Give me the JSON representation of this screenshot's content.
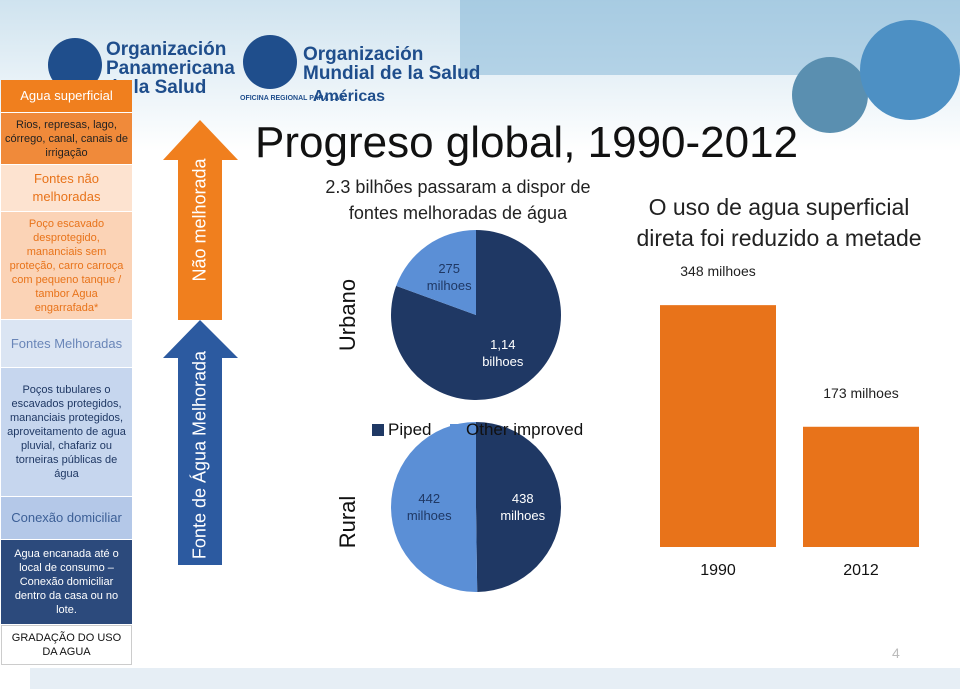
{
  "header": {
    "paho": [
      "Organización",
      "Panamericana",
      "de la Salud"
    ],
    "who": [
      "Organización",
      "Mundial de la Salud"
    ],
    "who_office": "OFICINA REGIONAL PARA LAS",
    "who_region": "Américas"
  },
  "sidebar": [
    "Agua superficial",
    "Rios, represas, lago, córrego, canal, canais de irrigação",
    "Fontes não melhoradas",
    "Poço escavado desprotegido, mananciais sem proteção, carro carroça com pequeno tanque / tambor Agua engarrafada*",
    "Fontes Melhoradas",
    "Poços tubulares o escavados protegidos, mananciais protegidos, aproveitamento de agua pluvial, chafariz ou torneiras públicas de água",
    "Conexão domiciliar",
    "Agua encanada até o local de consumo – Conexão domiciliar dentro da casa ou no lote.",
    "GRADAÇÃO DO USO DA AGUA"
  ],
  "arrows": [
    "Não melhorada",
    "Fonte de Água Melhorada"
  ],
  "title": "Progreso global, 1990-2012",
  "page_number": "4",
  "chart_data": [
    {
      "type": "pie",
      "title": "2.3 bilhões passaram a dispor de fontes melhoradas de água",
      "categories": [
        "Piped",
        "Other improved"
      ],
      "colors": [
        "#1f3864",
        "#5b8fd6"
      ],
      "series": [
        {
          "name": "Urbano",
          "values": [
            1140,
            275
          ],
          "value_labels": [
            "1,14 bilhoes",
            "275 milhoes"
          ]
        },
        {
          "name": "Rural",
          "values": [
            438,
            442
          ],
          "value_labels": [
            "438 milhoes",
            "442 milhoes"
          ]
        }
      ]
    },
    {
      "type": "bar",
      "title": "O uso de agua superficial direta foi reduzido a metade",
      "categories": [
        "1990",
        "2012"
      ],
      "values": [
        348,
        173
      ],
      "value_labels": [
        "348 milhoes",
        "173 milhoes"
      ],
      "color": "#e8731a"
    }
  ]
}
